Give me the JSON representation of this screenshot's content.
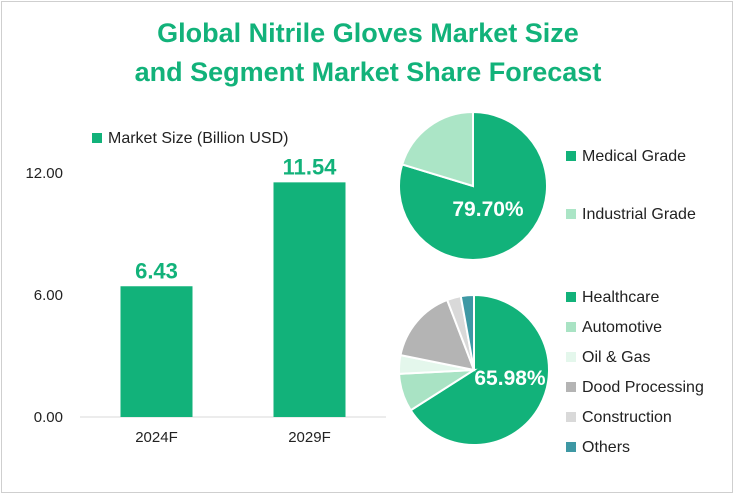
{
  "title_line1": "Global Nitrile Gloves Market Size",
  "title_line2": "and Segment Market Share Forecast",
  "colors": {
    "accent": "#12b27a",
    "bar": "#12b27a",
    "axis": "#d9d9d9"
  },
  "chart_data": [
    {
      "type": "bar",
      "title": "",
      "legend": "Market Size (Billion USD)",
      "categories": [
        "2024F",
        "2029F"
      ],
      "values": [
        6.43,
        11.54
      ],
      "value_labels": [
        "6.43",
        "11.54"
      ],
      "y_ticks": [
        "0.00",
        "6.00",
        "12.00"
      ],
      "y_tick_values": [
        0,
        6,
        12
      ],
      "ylim": [
        0,
        12
      ],
      "xlabel": "",
      "ylabel": ""
    },
    {
      "type": "pie",
      "title": "",
      "series": [
        {
          "name": "Medical Grade",
          "value": 79.7,
          "color": "#12b27a"
        },
        {
          "name": "Industrial Grade",
          "value": 20.3,
          "color": "#abe5c6"
        }
      ],
      "data_label": "79.70%"
    },
    {
      "type": "pie",
      "title": "",
      "series": [
        {
          "name": "Healthcare",
          "value": 65.98,
          "color": "#12b27a"
        },
        {
          "name": "Automotive",
          "value": 8.2,
          "color": "#a9e3c4"
        },
        {
          "name": "Oil & Gas",
          "value": 4.0,
          "color": "#e4f7ec"
        },
        {
          "name": "Dood Processing",
          "value": 16.0,
          "color": "#b4b4b4"
        },
        {
          "name": "Construction",
          "value": 3.0,
          "color": "#d9d9d9"
        },
        {
          "name": "Others",
          "value": 2.82,
          "color": "#3e98a4"
        }
      ],
      "data_label": "65.98%"
    }
  ]
}
